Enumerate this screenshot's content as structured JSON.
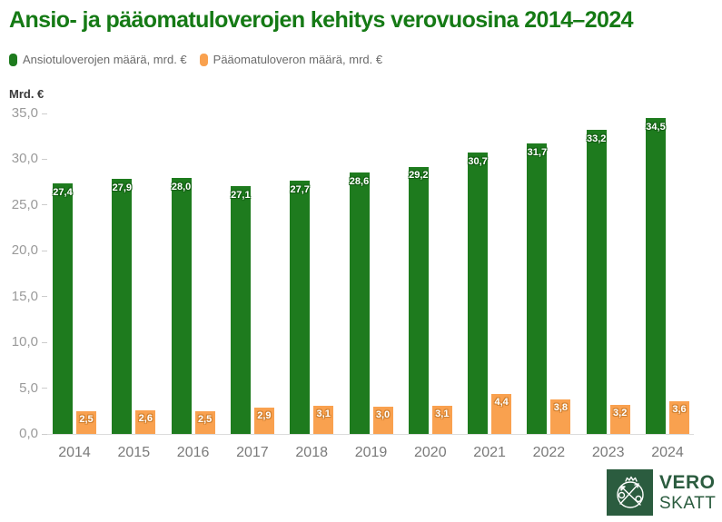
{
  "title": "Ansio- ja pääomatuloverojen kehitys verovuosina 2014–2024",
  "y_axis_unit": "Mrd. €",
  "legend": [
    {
      "label": "Ansiotuloverojen määrä, mrd. €",
      "color": "#1e7b1e"
    },
    {
      "label": "Pääomatuloveron määrä, mrd. €",
      "color": "#f9a14f"
    }
  ],
  "chart_data": {
    "type": "bar",
    "title": "Ansio- ja pääomatuloverojen kehitys verovuosina 2014–2024",
    "ylabel": "Mrd. €",
    "xlabel": "",
    "ylim": [
      0,
      35
    ],
    "ytick_step": 5,
    "ytick_labels": [
      "0,0",
      "5,0",
      "10,0",
      "15,0",
      "20,0",
      "25,0",
      "30,0",
      "35,0"
    ],
    "grid": false,
    "legend_position": "top-left",
    "categories": [
      "2014",
      "2015",
      "2016",
      "2017",
      "2018",
      "2019",
      "2020",
      "2021",
      "2022",
      "2023",
      "2024"
    ],
    "series": [
      {
        "name": "Ansiotuloverojen määrä, mrd. €",
        "key": "ansiotuloverot",
        "color": "#1e7b1e",
        "values": [
          27.4,
          27.9,
          28.0,
          27.1,
          27.7,
          28.6,
          29.2,
          30.7,
          31.7,
          33.2,
          34.5
        ],
        "labels": [
          "27,4",
          "27,9",
          "28,0",
          "27,1",
          "27,7",
          "28,6",
          "29,2",
          "30,7",
          "31,7",
          "33,2",
          "34,5"
        ]
      },
      {
        "name": "Pääomatuloveron määrä, mrd. €",
        "key": "paaomatulovero",
        "color": "#f9a14f",
        "values": [
          2.5,
          2.6,
          2.5,
          2.9,
          3.1,
          3.0,
          3.1,
          4.4,
          3.8,
          3.2,
          3.6
        ],
        "labels": [
          "2,5",
          "2,6",
          "2,5",
          "2,9",
          "3,1",
          "3,0",
          "3,1",
          "4,4",
          "3,8",
          "3,2",
          "3,6"
        ]
      }
    ]
  },
  "logo": {
    "line1": "VERO",
    "line2": "SKATT",
    "color": "#2b5c3f"
  }
}
